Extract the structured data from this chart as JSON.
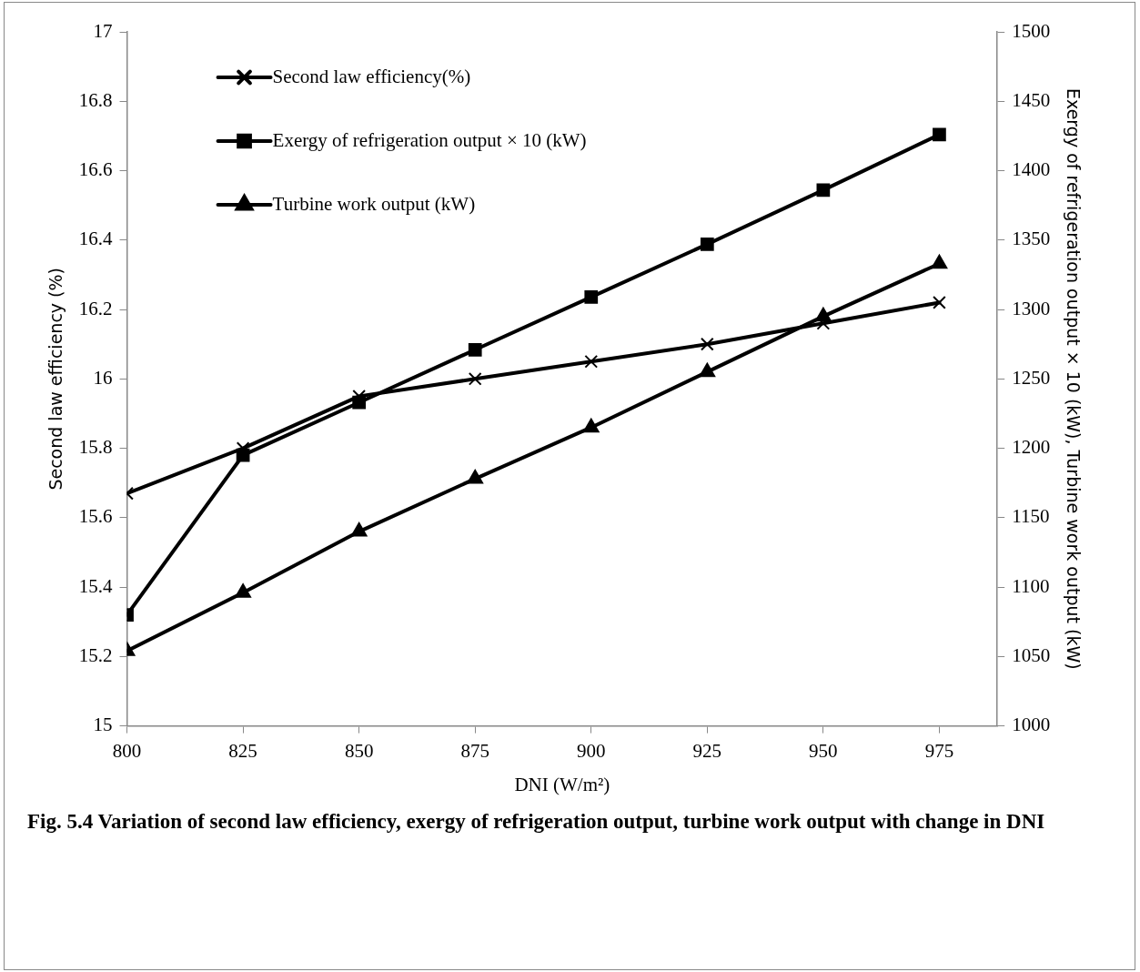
{
  "chart_data": {
    "type": "line",
    "xlabel": "DNI (W/m²)",
    "ylabel": "Second law efficiency (%)",
    "y2label": "Exergy of refrigeration output × 10 (kW), Turbine work output (kW)",
    "x": [
      800,
      825,
      850,
      875,
      900,
      925,
      950,
      975
    ],
    "xlim": [
      800,
      987.5
    ],
    "xticks": [
      800,
      825,
      850,
      875,
      900,
      925,
      950,
      975
    ],
    "ylim": [
      15,
      17
    ],
    "yticks": [
      15,
      15.2,
      15.4,
      15.6,
      15.8,
      16,
      16.2,
      16.4,
      16.6,
      16.8,
      17
    ],
    "y2lim": [
      1000,
      1500
    ],
    "y2ticks": [
      1000,
      1050,
      1100,
      1150,
      1200,
      1250,
      1300,
      1350,
      1400,
      1450,
      1500
    ],
    "series": [
      {
        "name": "Second law efficiency(%)",
        "color": "#000000",
        "marker": "cross",
        "values": [
          15.67,
          15.8,
          15.95,
          16.0,
          16.05,
          16.1,
          16.16,
          16.22
        ]
      },
      {
        "name": "Exergy of refrigeration output × 10 (kW)",
        "color": "#000000",
        "marker": "square",
        "axis": "y2",
        "values": [
          1080,
          1195,
          1233,
          1271,
          1309,
          1347,
          1386,
          1426
        ]
      },
      {
        "name": "Turbine work output (kW)",
        "color": "#000000",
        "marker": "triangle",
        "axis": "y2",
        "values": [
          1054,
          1096,
          1140,
          1178,
          1215,
          1255,
          1295,
          1333
        ]
      }
    ],
    "legend": "top left",
    "grid": false,
    "line_style": "solid",
    "annotations": [
      "Fig. 5.4  Variation of second law efficiency, exergy of refrigeration output, turbine work output with change in DNI"
    ]
  }
}
